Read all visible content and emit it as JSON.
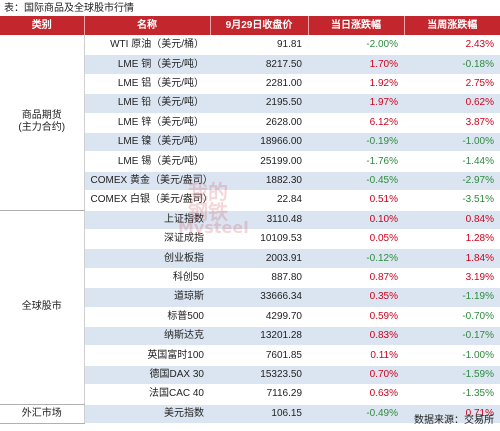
{
  "caption": "表：国际商品及全球股市行情",
  "headers": [
    "类别",
    "名称",
    "9月29日收盘价",
    "当日涨跌幅",
    "当周涨跌幅"
  ],
  "groups": [
    {
      "category": "商品期货\n(主力合约)",
      "rows": [
        {
          "name": "WTI 原油（美元/桶）",
          "close": "91.81",
          "day": "-2.00%",
          "week": "2.43%"
        },
        {
          "name": "LME 铜（美元/吨）",
          "close": "8217.50",
          "day": "1.70%",
          "week": "-0.18%"
        },
        {
          "name": "LME 铝（美元/吨）",
          "close": "2281.00",
          "day": "1.92%",
          "week": "2.75%"
        },
        {
          "name": "LME 铅（美元/吨）",
          "close": "2195.50",
          "day": "1.97%",
          "week": "0.62%"
        },
        {
          "name": "LME 锌（美元/吨）",
          "close": "2628.00",
          "day": "6.12%",
          "week": "3.87%"
        },
        {
          "name": "LME 镍（美元/吨）",
          "close": "18966.00",
          "day": "-0.19%",
          "week": "-1.00%"
        },
        {
          "name": "LME 锡（美元/吨）",
          "close": "25199.00",
          "day": "-1.76%",
          "week": "-1.44%"
        },
        {
          "name": "COMEX 黄金（美元/盎司）",
          "close": "1882.30",
          "day": "-0.45%",
          "week": "-2.97%"
        },
        {
          "name": "COMEX 白银（美元/盎司）",
          "close": "22.84",
          "day": "0.51%",
          "week": "-3.51%"
        }
      ]
    },
    {
      "category": "全球股市",
      "rows": [
        {
          "name": "上证指数",
          "close": "3110.48",
          "day": "0.10%",
          "week": "0.84%"
        },
        {
          "name": "深证成指",
          "close": "10109.53",
          "day": "0.05%",
          "week": "1.28%"
        },
        {
          "name": "创业板指",
          "close": "2003.91",
          "day": "-0.12%",
          "week": "1.84%"
        },
        {
          "name": "科创50",
          "close": "887.80",
          "day": "0.87%",
          "week": "3.19%"
        },
        {
          "name": "道琼斯",
          "close": "33666.34",
          "day": "0.35%",
          "week": "-1.19%"
        },
        {
          "name": "标普500",
          "close": "4299.70",
          "day": "0.59%",
          "week": "-0.70%"
        },
        {
          "name": "纳斯达克",
          "close": "13201.28",
          "day": "0.83%",
          "week": "-0.17%"
        },
        {
          "name": "英国富时100",
          "close": "7601.85",
          "day": "0.11%",
          "week": "-1.00%"
        },
        {
          "name": "德国DAX 30",
          "close": "15323.50",
          "day": "0.70%",
          "week": "-1.59%"
        },
        {
          "name": "法国CAC 40",
          "close": "7116.29",
          "day": "0.63%",
          "week": "-1.35%"
        }
      ]
    },
    {
      "category": "外汇市场",
      "rows": [
        {
          "name": "美元指数",
          "close": "106.15",
          "day": "-0.49%",
          "week": "0.71%"
        }
      ]
    }
  ],
  "source": "数据来源：交易所",
  "watermark": {
    "line1": "我的",
    "line2": "钢铁",
    "line3": "Mysteel",
    "color": "#c4262e"
  },
  "colors": {
    "header_bg": "#c4262e",
    "stripe": "#dbe5f1",
    "up": "#d0021b",
    "down": "#2e8b3d"
  }
}
